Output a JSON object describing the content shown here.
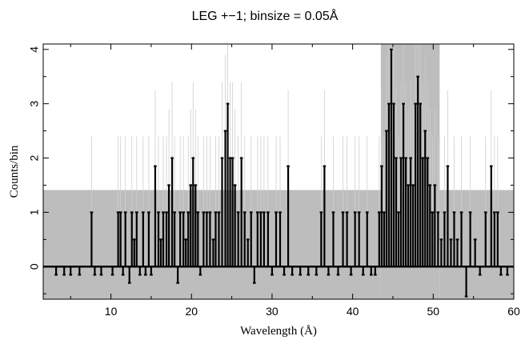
{
  "chart_data": {
    "type": "line",
    "title": "LEG +−1; binsize = 0.05Å",
    "xlabel": "Wavelength (Å)",
    "ylabel": "Counts/bin",
    "xlim": [
      1.6,
      60
    ],
    "ylim": [
      -0.6,
      4.1
    ],
    "x_ticks": [
      10,
      20,
      30,
      40,
      50,
      60
    ],
    "y_ticks": [
      0,
      1,
      2,
      3,
      4
    ],
    "grid": false,
    "legend": "none",
    "colors": {
      "data": "#000000",
      "error_band": "#bdbdbd",
      "error_bars": "#cfcfcf",
      "zero_line": "#000000"
    },
    "error_band": [
      {
        "x": [
          1.6,
          43.5
        ],
        "y": [
          -0.6,
          1.41
        ]
      },
      {
        "x": [
          43.5,
          50.8
        ],
        "y": [
          -0.6,
          4.1
        ]
      },
      {
        "x": [
          50.8,
          60.0
        ],
        "y": [
          -0.6,
          1.41
        ]
      }
    ],
    "series": [
      {
        "values": [
          [
            3.2,
            -0.15
          ],
          [
            4.2,
            -0.15
          ],
          [
            5.0,
            -0.15
          ],
          [
            6.1,
            -0.15
          ],
          [
            7.6,
            1
          ],
          [
            8.0,
            -0.15
          ],
          [
            8.8,
            -0.15
          ],
          [
            10.2,
            -0.15
          ],
          [
            10.9,
            1
          ],
          [
            11.2,
            1
          ],
          [
            11.5,
            -0.15
          ],
          [
            11.8,
            1
          ],
          [
            12.3,
            -0.3
          ],
          [
            12.6,
            1
          ],
          [
            12.9,
            0.5
          ],
          [
            13.2,
            1
          ],
          [
            13.6,
            -0.15
          ],
          [
            14.0,
            1
          ],
          [
            14.3,
            -0.15
          ],
          [
            14.7,
            1
          ],
          [
            15.0,
            -0.15
          ],
          [
            15.5,
            1.85
          ],
          [
            15.9,
            1
          ],
          [
            16.2,
            0.5
          ],
          [
            16.5,
            1
          ],
          [
            16.9,
            1
          ],
          [
            17.2,
            1.5
          ],
          [
            17.6,
            2
          ],
          [
            17.9,
            1
          ],
          [
            18.3,
            -0.3
          ],
          [
            18.6,
            1
          ],
          [
            19.0,
            1
          ],
          [
            19.3,
            0.5
          ],
          [
            19.6,
            1
          ],
          [
            19.9,
            1.5
          ],
          [
            20.2,
            2
          ],
          [
            20.5,
            1.5
          ],
          [
            20.8,
            1
          ],
          [
            21.1,
            -0.15
          ],
          [
            21.5,
            1
          ],
          [
            21.9,
            1
          ],
          [
            22.3,
            1
          ],
          [
            22.7,
            0.5
          ],
          [
            23.0,
            1
          ],
          [
            23.4,
            1
          ],
          [
            23.8,
            2
          ],
          [
            24.2,
            2.5
          ],
          [
            24.5,
            3
          ],
          [
            24.8,
            2
          ],
          [
            25.1,
            2
          ],
          [
            25.4,
            1.5
          ],
          [
            25.8,
            1
          ],
          [
            26.2,
            2
          ],
          [
            26.6,
            1
          ],
          [
            27.0,
            0.5
          ],
          [
            27.4,
            1
          ],
          [
            27.8,
            -0.3
          ],
          [
            28.2,
            1
          ],
          [
            28.6,
            1
          ],
          [
            29.0,
            1
          ],
          [
            29.5,
            1
          ],
          [
            30.0,
            -0.15
          ],
          [
            30.5,
            1
          ],
          [
            31.0,
            1
          ],
          [
            31.5,
            -0.15
          ],
          [
            32.0,
            1.85
          ],
          [
            32.5,
            -0.15
          ],
          [
            33.5,
            -0.15
          ],
          [
            34.5,
            -0.15
          ],
          [
            35.5,
            -0.15
          ],
          [
            36.1,
            1
          ],
          [
            36.5,
            1.85
          ],
          [
            37.0,
            -0.15
          ],
          [
            37.6,
            1
          ],
          [
            38.2,
            -0.15
          ],
          [
            38.8,
            1
          ],
          [
            39.3,
            1
          ],
          [
            39.8,
            -0.15
          ],
          [
            40.3,
            1
          ],
          [
            40.8,
            1
          ],
          [
            41.3,
            -0.15
          ],
          [
            41.8,
            1
          ],
          [
            42.3,
            -0.15
          ],
          [
            42.8,
            -0.15
          ],
          [
            43.3,
            1
          ],
          [
            43.6,
            1.85
          ],
          [
            43.9,
            1
          ],
          [
            44.2,
            2.5
          ],
          [
            44.5,
            3
          ],
          [
            44.8,
            4
          ],
          [
            45.1,
            3
          ],
          [
            45.4,
            2
          ],
          [
            45.7,
            1
          ],
          [
            46.0,
            2
          ],
          [
            46.3,
            3
          ],
          [
            46.6,
            2
          ],
          [
            46.9,
            1.5
          ],
          [
            47.2,
            2
          ],
          [
            47.5,
            1.5
          ],
          [
            47.8,
            3
          ],
          [
            48.1,
            3.5
          ],
          [
            48.4,
            3
          ],
          [
            48.7,
            2
          ],
          [
            49.0,
            2.5
          ],
          [
            49.3,
            2
          ],
          [
            49.6,
            1.5
          ],
          [
            49.9,
            1
          ],
          [
            50.2,
            1.5
          ],
          [
            50.6,
            1
          ],
          [
            51.0,
            0.5
          ],
          [
            51.4,
            1
          ],
          [
            51.8,
            1.85
          ],
          [
            52.2,
            0.5
          ],
          [
            52.6,
            1
          ],
          [
            53.0,
            0.5
          ],
          [
            53.5,
            1
          ],
          [
            54.1,
            -0.55
          ],
          [
            54.6,
            1
          ],
          [
            55.2,
            0.5
          ],
          [
            55.8,
            -0.15
          ],
          [
            56.5,
            1
          ],
          [
            57.2,
            1.85
          ],
          [
            57.6,
            1
          ],
          [
            58.0,
            1
          ],
          [
            58.4,
            -0.15
          ],
          [
            59.2,
            -0.15
          ]
        ]
      }
    ]
  }
}
